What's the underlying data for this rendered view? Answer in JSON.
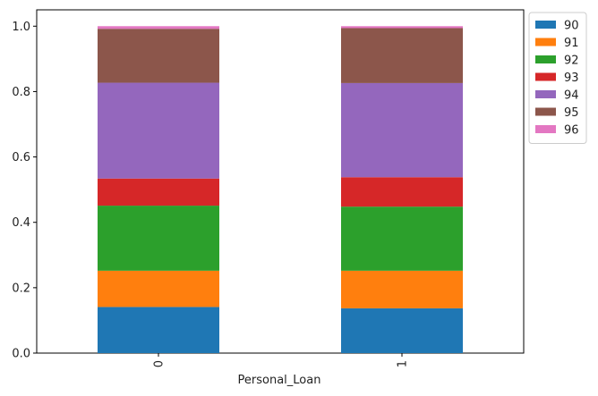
{
  "chart_data": {
    "type": "bar",
    "stacked": true,
    "categories": [
      "0",
      "1"
    ],
    "xlabel": "Personal_Loan",
    "ylabel": "",
    "ylim": [
      0,
      1.05
    ],
    "yticks": [
      "0.0",
      "0.2",
      "0.4",
      "0.6",
      "0.8",
      "1.0"
    ],
    "legend_position": "upper-right-outside",
    "series": [
      {
        "name": "90",
        "color": "#1f77b4",
        "values": [
          0.141,
          0.137
        ]
      },
      {
        "name": "91",
        "color": "#ff7f0e",
        "values": [
          0.111,
          0.115
        ]
      },
      {
        "name": "92",
        "color": "#2ca02c",
        "values": [
          0.199,
          0.196
        ]
      },
      {
        "name": "93",
        "color": "#d62728",
        "values": [
          0.083,
          0.09
        ]
      },
      {
        "name": "94",
        "color": "#9467bd",
        "values": [
          0.293,
          0.288
        ]
      },
      {
        "name": "95",
        "color": "#8c564b",
        "values": [
          0.165,
          0.168
        ]
      },
      {
        "name": "96",
        "color": "#e377c2",
        "values": [
          0.008,
          0.006
        ]
      }
    ]
  }
}
